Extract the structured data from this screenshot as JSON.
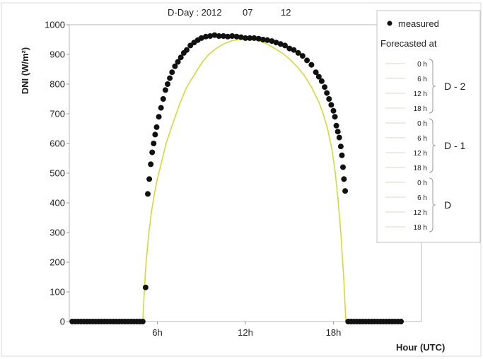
{
  "chart_data": {
    "type": "scatter",
    "title": {
      "prefix": "D-Day : 2012",
      "month": "07",
      "day": "12"
    },
    "xlabel": "Hour (UTC)",
    "ylabel": "DNI (W/m²)",
    "xlim": [
      0,
      24
    ],
    "ylim": [
      0,
      1000
    ],
    "x_ticks": [
      {
        "value": 6,
        "label": "6h"
      },
      {
        "value": 12,
        "label": "12h"
      },
      {
        "value": 18,
        "label": "18h"
      }
    ],
    "y_ticks": [
      0,
      100,
      200,
      300,
      400,
      500,
      600,
      700,
      800,
      900,
      1000
    ],
    "grid": false,
    "legend_position": "top-right, outside plot",
    "legend": {
      "measured_label": "measured",
      "forecast_header": "Forecasted at",
      "groups": [
        {
          "label": "D - 2",
          "hours": [
            "0 h",
            "6 h",
            "12 h",
            "18 h"
          ]
        },
        {
          "label": "D - 1",
          "hours": [
            "0 h",
            "6 h",
            "12 h",
            "18 h"
          ]
        },
        {
          "label": "D",
          "hours": [
            "0 h",
            "6 h",
            "12 h",
            "18 h"
          ]
        }
      ]
    },
    "colors": {
      "measured": "#111111",
      "forecast": "#d6d83a",
      "legend_line": "#d8d8c8"
    },
    "series": [
      {
        "name": "measured",
        "x": [
          0.2,
          0.4,
          0.6,
          0.8,
          1.0,
          1.2,
          1.4,
          1.6,
          1.8,
          2.0,
          2.2,
          2.4,
          2.6,
          2.8,
          3.0,
          3.2,
          3.4,
          3.6,
          3.8,
          4.0,
          4.2,
          4.4,
          4.6,
          4.8,
          5.0,
          5.2,
          5.35,
          5.45,
          5.55,
          5.65,
          5.75,
          5.85,
          5.95,
          6.1,
          6.25,
          6.4,
          6.55,
          6.7,
          6.85,
          7.0,
          7.2,
          7.4,
          7.6,
          7.8,
          8.0,
          8.25,
          8.5,
          8.75,
          9.0,
          9.3,
          9.6,
          9.9,
          10.2,
          10.5,
          10.8,
          11.1,
          11.4,
          11.7,
          12.0,
          12.3,
          12.6,
          12.9,
          13.2,
          13.5,
          13.8,
          14.1,
          14.4,
          14.7,
          15.0,
          15.3,
          15.6,
          15.9,
          16.2,
          16.5,
          16.8,
          17.0,
          17.2,
          17.4,
          17.55,
          17.7,
          17.85,
          18.0,
          18.1,
          18.2,
          18.3,
          18.4,
          18.5,
          18.58,
          18.65,
          18.72,
          18.8,
          19.0,
          19.2,
          19.4,
          19.6,
          19.8,
          20.0,
          20.2,
          20.4,
          20.6,
          20.8,
          21.0,
          21.2,
          21.4,
          21.6,
          21.8,
          22.0,
          22.2,
          22.4,
          22.6
        ],
        "y": [
          0,
          0,
          0,
          0,
          0,
          0,
          0,
          0,
          0,
          0,
          0,
          0,
          0,
          0,
          0,
          0,
          0,
          0,
          0,
          0,
          0,
          0,
          0,
          0,
          0,
          115,
          430,
          480,
          530,
          570,
          600,
          630,
          655,
          690,
          720,
          750,
          780,
          800,
          820,
          840,
          860,
          875,
          890,
          905,
          915,
          930,
          940,
          948,
          955,
          960,
          962,
          965,
          962,
          962,
          960,
          962,
          960,
          958,
          955,
          955,
          955,
          953,
          950,
          948,
          945,
          940,
          935,
          930,
          920,
          915,
          905,
          895,
          880,
          865,
          840,
          825,
          810,
          790,
          770,
          750,
          730,
          710,
          690,
          660,
          640,
          620,
          590,
          560,
          520,
          480,
          440,
          0,
          0,
          0,
          0,
          0,
          0,
          0,
          0,
          0,
          0,
          0,
          0,
          0,
          0,
          0,
          0,
          0,
          0,
          0
        ]
      },
      {
        "name": "forecast",
        "x": [
          5.0,
          5.2,
          5.4,
          5.6,
          5.8,
          6.0,
          6.3,
          6.6,
          7.0,
          7.5,
          8.0,
          8.5,
          9.0,
          9.5,
          10.0,
          10.5,
          11.0,
          11.5,
          12.0,
          12.5,
          13.0,
          13.5,
          14.0,
          14.5,
          15.0,
          15.5,
          16.0,
          16.5,
          17.0,
          17.3,
          17.6,
          17.9,
          18.1,
          18.3,
          18.5,
          18.7,
          18.85
        ],
        "y": [
          0,
          180,
          290,
          370,
          430,
          480,
          540,
          600,
          660,
          730,
          790,
          830,
          870,
          900,
          920,
          935,
          945,
          950,
          952,
          950,
          945,
          935,
          920,
          905,
          885,
          860,
          830,
          790,
          740,
          700,
          650,
          580,
          510,
          420,
          300,
          150,
          0
        ]
      }
    ]
  }
}
